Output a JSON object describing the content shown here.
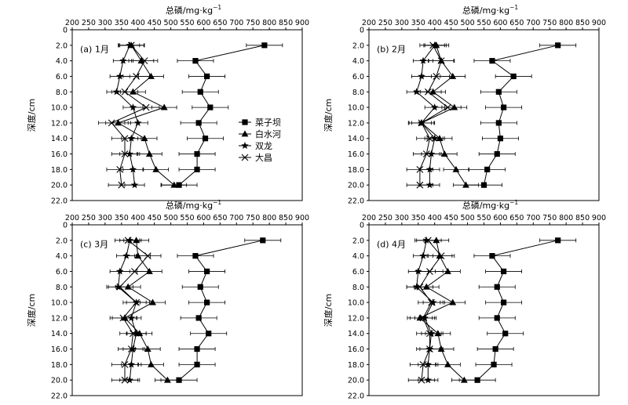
{
  "x_axis_title": "总磷/mg·kg",
  "x_axis_title_sup": "−1",
  "y_axis_title": "深度/cm",
  "chart_data": [
    {
      "type": "line",
      "panel_label": "(a) 1月",
      "x_ticks": [
        "200",
        "250",
        "300",
        "350",
        "400",
        "450",
        "500",
        "550",
        "600",
        "650",
        "700",
        "750",
        "800",
        "850",
        "900"
      ],
      "y_ticks": [
        "0",
        "2.0",
        "4.0",
        "6.0",
        "8.0",
        "10.0",
        "12.0",
        "14.0",
        "16.0",
        "18.0",
        "20.0",
        "22.0"
      ],
      "xlim": [
        200,
        900
      ],
      "ylim": [
        0,
        22
      ],
      "y_inverted": true,
      "depths": [
        2,
        4,
        6,
        8,
        10,
        12,
        14,
        16,
        18,
        20
      ],
      "series": [
        {
          "name": "菜子坝",
          "marker": "square",
          "values": [
            785,
            575,
            610,
            590,
            620,
            585,
            605,
            580,
            580,
            525
          ]
        },
        {
          "name": "白水河",
          "marker": "triangle",
          "values": [
            380,
            410,
            440,
            385,
            480,
            340,
            420,
            435,
            455,
            510
          ]
        },
        {
          "name": "双龙",
          "marker": "star",
          "values": [
            375,
            355,
            345,
            335,
            385,
            400,
            380,
            375,
            385,
            390
          ]
        },
        {
          "name": "大昌",
          "marker": "x",
          "values": [
            380,
            420,
            395,
            360,
            425,
            320,
            360,
            360,
            345,
            350
          ]
        }
      ],
      "legend_position": "middle-right"
    },
    {
      "type": "line",
      "panel_label": "(b) 2月",
      "x_ticks": [
        "200",
        "250",
        "300",
        "350",
        "400",
        "450",
        "500",
        "550",
        "600",
        "650",
        "700",
        "750",
        "800",
        "850",
        "900"
      ],
      "y_ticks": [
        "0",
        "2.0",
        "4.0",
        "6.0",
        "8.0",
        "10.0",
        "12.0",
        "14.0",
        "16.0",
        "18.0",
        "20.0",
        "22.0"
      ],
      "xlim": [
        200,
        900
      ],
      "ylim": [
        0,
        22
      ],
      "y_inverted": true,
      "depths": [
        2,
        4,
        6,
        8,
        10,
        12,
        14,
        16,
        18,
        20
      ],
      "series": [
        {
          "name": "菜子坝",
          "values": [
            775,
            575,
            640,
            595,
            610,
            595,
            600,
            590,
            560,
            550
          ]
        },
        {
          "name": "白水河",
          "values": [
            405,
            420,
            455,
            395,
            460,
            360,
            415,
            430,
            465,
            495
          ]
        },
        {
          "name": "双龙",
          "values": [
            400,
            365,
            360,
            345,
            400,
            360,
            400,
            390,
            385,
            385
          ]
        },
        {
          "name": "大昌",
          "values": [
            395,
            420,
            405,
            380,
            440,
            360,
            385,
            375,
            355,
            355
          ]
        }
      ]
    },
    {
      "type": "line",
      "panel_label": "(c) 3月",
      "x_ticks": [
        "200",
        "250",
        "300",
        "350",
        "400",
        "450",
        "500",
        "550",
        "600",
        "650",
        "700",
        "750",
        "800",
        "850",
        "900"
      ],
      "y_ticks": [
        "0",
        "2.0",
        "4.0",
        "6.0",
        "8.0",
        "10.0",
        "12.0",
        "14.0",
        "16.0",
        "18.0",
        "20.0",
        "22.0"
      ],
      "xlim": [
        200,
        900
      ],
      "ylim": [
        0,
        22
      ],
      "y_inverted": true,
      "depths": [
        2,
        4,
        6,
        8,
        10,
        12,
        14,
        16,
        18,
        20
      ],
      "series": [
        {
          "name": "菜子坝",
          "values": [
            780,
            575,
            610,
            590,
            610,
            585,
            615,
            580,
            580,
            525
          ]
        },
        {
          "name": "白水河",
          "values": [
            395,
            400,
            435,
            370,
            445,
            360,
            405,
            430,
            440,
            490
          ]
        },
        {
          "name": "双龙",
          "values": [
            375,
            365,
            345,
            340,
            395,
            380,
            395,
            385,
            380,
            375
          ]
        },
        {
          "name": "大昌",
          "values": [
            370,
            430,
            390,
            345,
            395,
            355,
            385,
            380,
            360,
            360
          ]
        }
      ]
    },
    {
      "type": "line",
      "panel_label": "(d) 4月",
      "x_ticks": [
        "200",
        "250",
        "300",
        "350",
        "400",
        "450",
        "500",
        "550",
        "600",
        "650",
        "700",
        "750",
        "800",
        "850",
        "900"
      ],
      "y_ticks": [
        "0",
        "2.0",
        "4.0",
        "6.0",
        "8.0",
        "10.0",
        "12.0",
        "14.0",
        "16.0",
        "18.0",
        "20.0",
        "22.0"
      ],
      "xlim": [
        200,
        900
      ],
      "ylim": [
        0,
        22
      ],
      "y_inverted": true,
      "depths": [
        2,
        4,
        6,
        8,
        10,
        12,
        14,
        16,
        18,
        20
      ],
      "series": [
        {
          "name": "菜子坝",
          "values": [
            775,
            575,
            610,
            590,
            610,
            590,
            615,
            585,
            580,
            530
          ]
        },
        {
          "name": "白水河",
          "values": [
            405,
            415,
            440,
            375,
            455,
            355,
            410,
            420,
            440,
            490
          ]
        },
        {
          "name": "双龙",
          "values": [
            375,
            365,
            350,
            345,
            395,
            370,
            390,
            385,
            380,
            380
          ]
        },
        {
          "name": "大昌",
          "values": [
            380,
            420,
            385,
            355,
            390,
            365,
            385,
            385,
            365,
            360
          ]
        }
      ]
    }
  ],
  "colors": {
    "ink": "#000000",
    "background": "#ffffff"
  }
}
